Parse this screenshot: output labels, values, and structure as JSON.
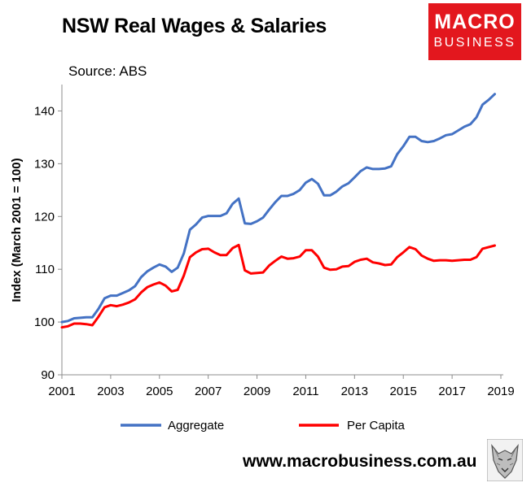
{
  "header": {
    "title": "NSW Real Wages & Salaries",
    "source": "Source: ABS"
  },
  "logo": {
    "line1": "MACRO",
    "line2": "BUSINESS"
  },
  "footer": {
    "website": "www.macrobusiness.com.au"
  },
  "colors": {
    "aggregate": "#4472c4",
    "per_capita": "#ff0000",
    "logo_bg": "#e3171e"
  },
  "chart_data": {
    "type": "line",
    "title": "NSW Real Wages & Salaries",
    "xlabel": "",
    "ylabel": "Index (March 2001 = 100)",
    "xlim": [
      2001,
      2019.1
    ],
    "ylim": [
      90,
      145
    ],
    "x_ticks": [
      "2001",
      "2003",
      "2005",
      "2007",
      "2009",
      "2011",
      "2013",
      "2015",
      "2017",
      "2019"
    ],
    "y_ticks": [
      "90",
      "100",
      "110",
      "120",
      "130",
      "140"
    ],
    "grid": false,
    "legend": "bottom",
    "x": [
      2001.0,
      2001.25,
      2001.5,
      2001.75,
      2002.0,
      2002.25,
      2002.5,
      2002.75,
      2003.0,
      2003.25,
      2003.5,
      2003.75,
      2004.0,
      2004.25,
      2004.5,
      2004.75,
      2005.0,
      2005.25,
      2005.5,
      2005.75,
      2006.0,
      2006.25,
      2006.5,
      2006.75,
      2007.0,
      2007.25,
      2007.5,
      2007.75,
      2008.0,
      2008.25,
      2008.5,
      2008.75,
      2009.0,
      2009.25,
      2009.5,
      2009.75,
      2010.0,
      2010.25,
      2010.5,
      2010.75,
      2011.0,
      2011.25,
      2011.5,
      2011.75,
      2012.0,
      2012.25,
      2012.5,
      2012.75,
      2013.0,
      2013.25,
      2013.5,
      2013.75,
      2014.0,
      2014.25,
      2014.5,
      2014.75,
      2015.0,
      2015.25,
      2015.5,
      2015.75,
      2016.0,
      2016.25,
      2016.5,
      2016.75,
      2017.0,
      2017.25,
      2017.5,
      2017.75,
      2018.0,
      2018.25,
      2018.5,
      2018.75
    ],
    "series": [
      {
        "name": "Aggregate",
        "color": "#4472c4",
        "values": [
          100.0,
          100.2,
          100.7,
          100.8,
          100.9,
          100.9,
          102.5,
          104.5,
          105.0,
          105.0,
          105.5,
          106.0,
          106.8,
          108.5,
          109.6,
          110.3,
          110.9,
          110.5,
          109.5,
          110.3,
          113.0,
          117.5,
          118.5,
          119.8,
          120.1,
          120.1,
          120.1,
          120.6,
          122.4,
          123.4,
          118.7,
          118.6,
          119.1,
          119.8,
          121.3,
          122.7,
          123.9,
          123.9,
          124.3,
          125.0,
          126.4,
          127.1,
          126.2,
          124.0,
          124.0,
          124.7,
          125.7,
          126.3,
          127.4,
          128.6,
          129.3,
          129.0,
          129.0,
          129.1,
          129.5,
          131.8,
          133.3,
          135.1,
          135.1,
          134.3,
          134.1,
          134.3,
          134.8,
          135.4,
          135.6,
          136.3,
          137.0,
          137.5,
          138.8,
          141.2,
          142.1,
          143.2
        ]
      },
      {
        "name": "Per Capita",
        "color": "#ff0000",
        "values": [
          99.0,
          99.2,
          99.7,
          99.7,
          99.6,
          99.4,
          101.0,
          102.8,
          103.2,
          103.0,
          103.3,
          103.7,
          104.3,
          105.6,
          106.6,
          107.1,
          107.5,
          106.9,
          105.8,
          106.1,
          108.8,
          112.3,
          113.2,
          113.8,
          113.9,
          113.2,
          112.7,
          112.7,
          114.0,
          114.6,
          109.8,
          109.2,
          109.3,
          109.4,
          110.7,
          111.6,
          112.4,
          112.0,
          112.1,
          112.4,
          113.6,
          113.6,
          112.4,
          110.3,
          109.9,
          110.0,
          110.5,
          110.6,
          111.4,
          111.8,
          112.0,
          111.3,
          111.1,
          110.8,
          110.9,
          112.3,
          113.2,
          114.2,
          113.8,
          112.6,
          112.0,
          111.6,
          111.7,
          111.7,
          111.6,
          111.7,
          111.8,
          111.8,
          112.3,
          113.9,
          114.2,
          114.5
        ]
      }
    ]
  }
}
